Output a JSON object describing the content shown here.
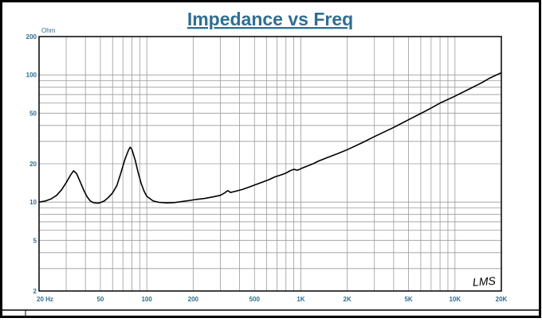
{
  "chart_data": {
    "type": "line",
    "title": "Impedance vs Freq",
    "y_unit_label": "Ohm",
    "x_scale": "log",
    "y_scale": "log",
    "xlim": [
      20,
      20000
    ],
    "ylim": [
      2,
      200
    ],
    "x_ticks": [
      {
        "value": 20,
        "label": "20 Hz"
      },
      {
        "value": 50,
        "label": "50"
      },
      {
        "value": 100,
        "label": "100"
      },
      {
        "value": 200,
        "label": "200"
      },
      {
        "value": 500,
        "label": "500"
      },
      {
        "value": 1000,
        "label": "1K"
      },
      {
        "value": 2000,
        "label": "2K"
      },
      {
        "value": 5000,
        "label": "5K"
      },
      {
        "value": 10000,
        "label": "10K"
      },
      {
        "value": 20000,
        "label": "20K"
      }
    ],
    "y_ticks": [
      {
        "value": 200,
        "label": "200"
      },
      {
        "value": 100,
        "label": "100"
      },
      {
        "value": 50,
        "label": "50"
      },
      {
        "value": 20,
        "label": "20"
      },
      {
        "value": 10,
        "label": "10"
      },
      {
        "value": 5,
        "label": "5"
      },
      {
        "value": 2,
        "label": "2"
      }
    ],
    "grid": true,
    "watermark": "LMS",
    "series": [
      {
        "color": "#000000",
        "points": [
          [
            20,
            10.0
          ],
          [
            22,
            10.2
          ],
          [
            24,
            10.6
          ],
          [
            26,
            11.3
          ],
          [
            28,
            12.5
          ],
          [
            30,
            14.2
          ],
          [
            32,
            16.3
          ],
          [
            33.5,
            17.6
          ],
          [
            35,
            16.8
          ],
          [
            37,
            14.4
          ],
          [
            39,
            12.4
          ],
          [
            41,
            11.0
          ],
          [
            43,
            10.2
          ],
          [
            45,
            9.9
          ],
          [
            48,
            9.8
          ],
          [
            50,
            9.9
          ],
          [
            53,
            10.2
          ],
          [
            56,
            10.8
          ],
          [
            60,
            11.8
          ],
          [
            64,
            13.5
          ],
          [
            68,
            17.0
          ],
          [
            72,
            21.5
          ],
          [
            76,
            25.5
          ],
          [
            78,
            27.0
          ],
          [
            80,
            26.0
          ],
          [
            84,
            21.5
          ],
          [
            88,
            17.0
          ],
          [
            92,
            14.0
          ],
          [
            96,
            12.2
          ],
          [
            100,
            11.1
          ],
          [
            110,
            10.2
          ],
          [
            120,
            9.95
          ],
          [
            135,
            9.85
          ],
          [
            150,
            9.9
          ],
          [
            170,
            10.1
          ],
          [
            190,
            10.3
          ],
          [
            210,
            10.5
          ],
          [
            240,
            10.7
          ],
          [
            270,
            11.0
          ],
          [
            300,
            11.3
          ],
          [
            320,
            11.8
          ],
          [
            335,
            12.3
          ],
          [
            350,
            11.9
          ],
          [
            380,
            12.2
          ],
          [
            420,
            12.6
          ],
          [
            460,
            13.1
          ],
          [
            500,
            13.6
          ],
          [
            560,
            14.3
          ],
          [
            620,
            15.0
          ],
          [
            680,
            15.8
          ],
          [
            750,
            16.4
          ],
          [
            800,
            16.9
          ],
          [
            850,
            17.6
          ],
          [
            900,
            18.1
          ],
          [
            950,
            17.8
          ],
          [
            1000,
            18.3
          ],
          [
            1100,
            19.2
          ],
          [
            1200,
            20.0
          ],
          [
            1300,
            21.0
          ],
          [
            1500,
            22.5
          ],
          [
            1700,
            23.8
          ],
          [
            2000,
            25.8
          ],
          [
            2500,
            29.3
          ],
          [
            3000,
            32.7
          ],
          [
            4000,
            38.6
          ],
          [
            5000,
            44.4
          ],
          [
            6000,
            49.7
          ],
          [
            7000,
            54.8
          ],
          [
            8000,
            60.0
          ],
          [
            10000,
            68.0
          ],
          [
            12000,
            76.0
          ],
          [
            15000,
            87.0
          ],
          [
            17000,
            95.0
          ],
          [
            20000,
            104.0
          ]
        ]
      }
    ]
  }
}
